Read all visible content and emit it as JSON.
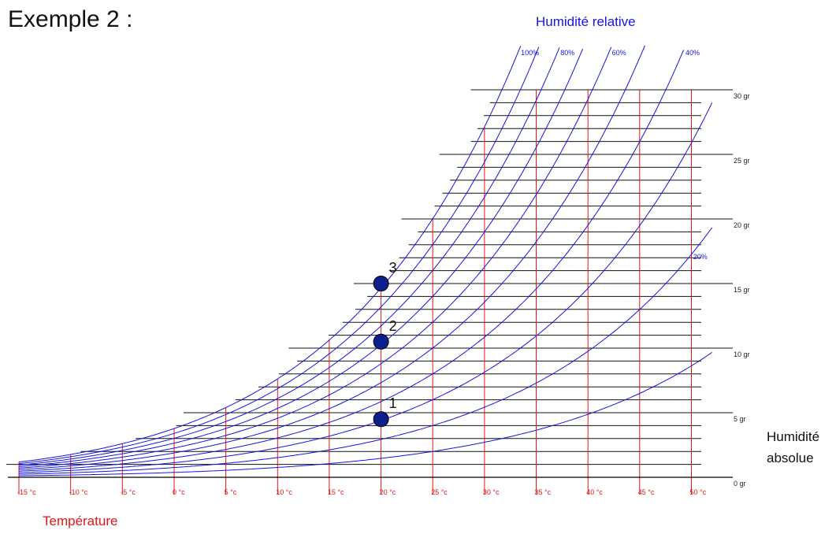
{
  "header": {
    "title": "Exemple 2 :",
    "rh_axis_title": "Humidité relative",
    "temperature_axis_title": "Température",
    "absolute_axis_title": "Humidité absolue"
  },
  "colors": {
    "temperature": "#e61414",
    "humidity_curves": "#1414e6",
    "points": "#0d1f8c",
    "grid": "#111111"
  },
  "chart_data": {
    "type": "line",
    "title": "Exemple 2 :",
    "xlabel": "Température",
    "ylabel": "Humidité absolue",
    "xlim": [
      -15,
      50
    ],
    "ylim": [
      0,
      30
    ],
    "x_ticks": [
      "-15 °c",
      "-10 °c",
      "-5 °c",
      "0 °c",
      "5 °c",
      "10 °c",
      "15 °c",
      "20 °c",
      "25 °c",
      "30 °c",
      "35 °c",
      "40 °c",
      "45 °c",
      "50 °c"
    ],
    "x_tick_values": [
      -15,
      -10,
      -5,
      0,
      5,
      10,
      15,
      20,
      25,
      30,
      35,
      40,
      45,
      50
    ],
    "y_ticks": [
      "0 gr",
      "5 gr",
      "10 gr",
      "15 gr",
      "20 gr",
      "25 gr",
      "30 gr"
    ],
    "y_tick_values": [
      0,
      5,
      10,
      15,
      20,
      25,
      30
    ],
    "grid_minor_step": 1,
    "relative_humidity_curves": [
      100,
      90,
      80,
      70,
      60,
      50,
      40,
      30,
      20,
      10
    ],
    "relative_humidity_labels": [
      {
        "rh": 100,
        "text": "100%"
      },
      {
        "rh": 80,
        "text": "80%"
      },
      {
        "rh": 60,
        "text": "60%"
      },
      {
        "rh": 40,
        "text": "40%"
      },
      {
        "rh": 20,
        "text": "20%"
      }
    ],
    "points": [
      {
        "label": "1",
        "temperature": 20,
        "absolute_humidity": 4.5
      },
      {
        "label": "2",
        "temperature": 20,
        "absolute_humidity": 10.5
      },
      {
        "label": "3",
        "temperature": 20,
        "absolute_humidity": 15
      }
    ]
  }
}
